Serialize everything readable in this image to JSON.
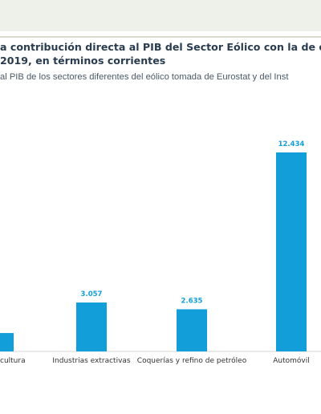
{
  "header": {
    "title_line1": "a contribución directa al PIB del Sector Eólico con la de ot",
    "title_line2": "2019, en términos corrientes",
    "subtitle": "al PIB de los sectores diferentes del eólico tomada de Eurostat y del Inst"
  },
  "colors": {
    "bar": "#129fd9",
    "title": "#2a3d50",
    "band": "#eef0ea"
  },
  "chart_data": {
    "type": "bar",
    "categories": [
      "cultura",
      "Industrias extractivas",
      "Coquerías y refino de petróleo",
      "Automóvil"
    ],
    "values": [
      1150,
      3057,
      2635,
      12434
    ],
    "data_labels": [
      "",
      "3.057",
      "2.635",
      "12.434"
    ],
    "ylim": [
      0,
      12434
    ],
    "grid": false
  }
}
